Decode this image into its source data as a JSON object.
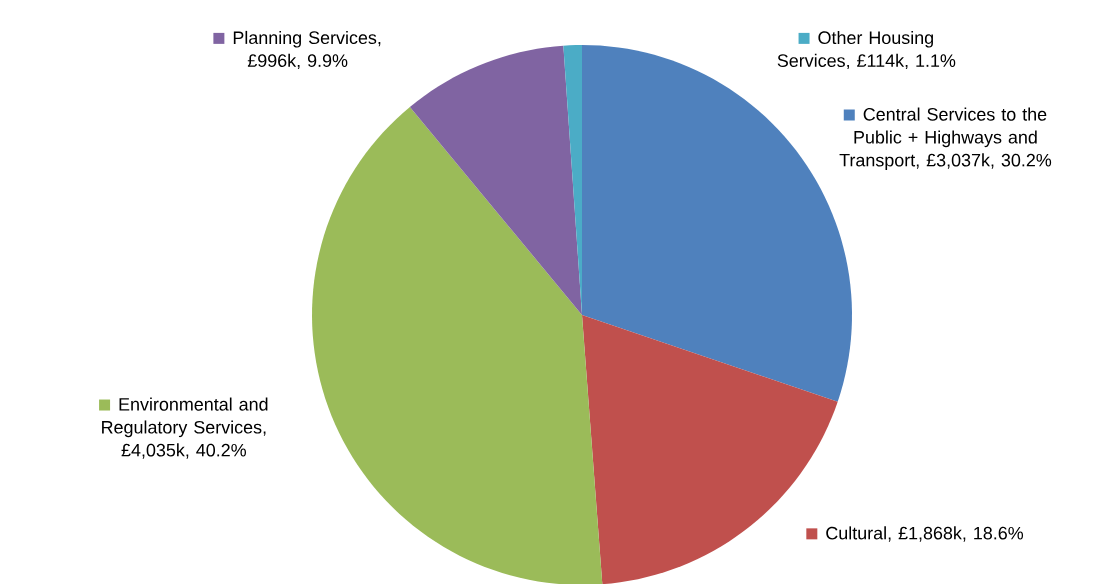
{
  "chart_data": {
    "type": "pie",
    "categories": [
      "Central Services to the Public + Highways and Transport",
      "Cultural",
      "Environmental and Regulatory Services",
      "Planning Services",
      "Other Housing Services"
    ],
    "values": [
      30.2,
      18.6,
      40.2,
      9.9,
      1.1
    ],
    "legend": "right",
    "value_labels": [
      ", £3,037k, 30.2%",
      ", £1,868k, 18.6%",
      ", £4,035k, 40.2%",
      ", £996k, 9.9%",
      ", £114k, 1.1%"
    ],
    "colors": [
      "#4f81bd",
      "#c0504d",
      "#9bbb59",
      "#8064a2",
      "#4bacc6"
    ]
  }
}
